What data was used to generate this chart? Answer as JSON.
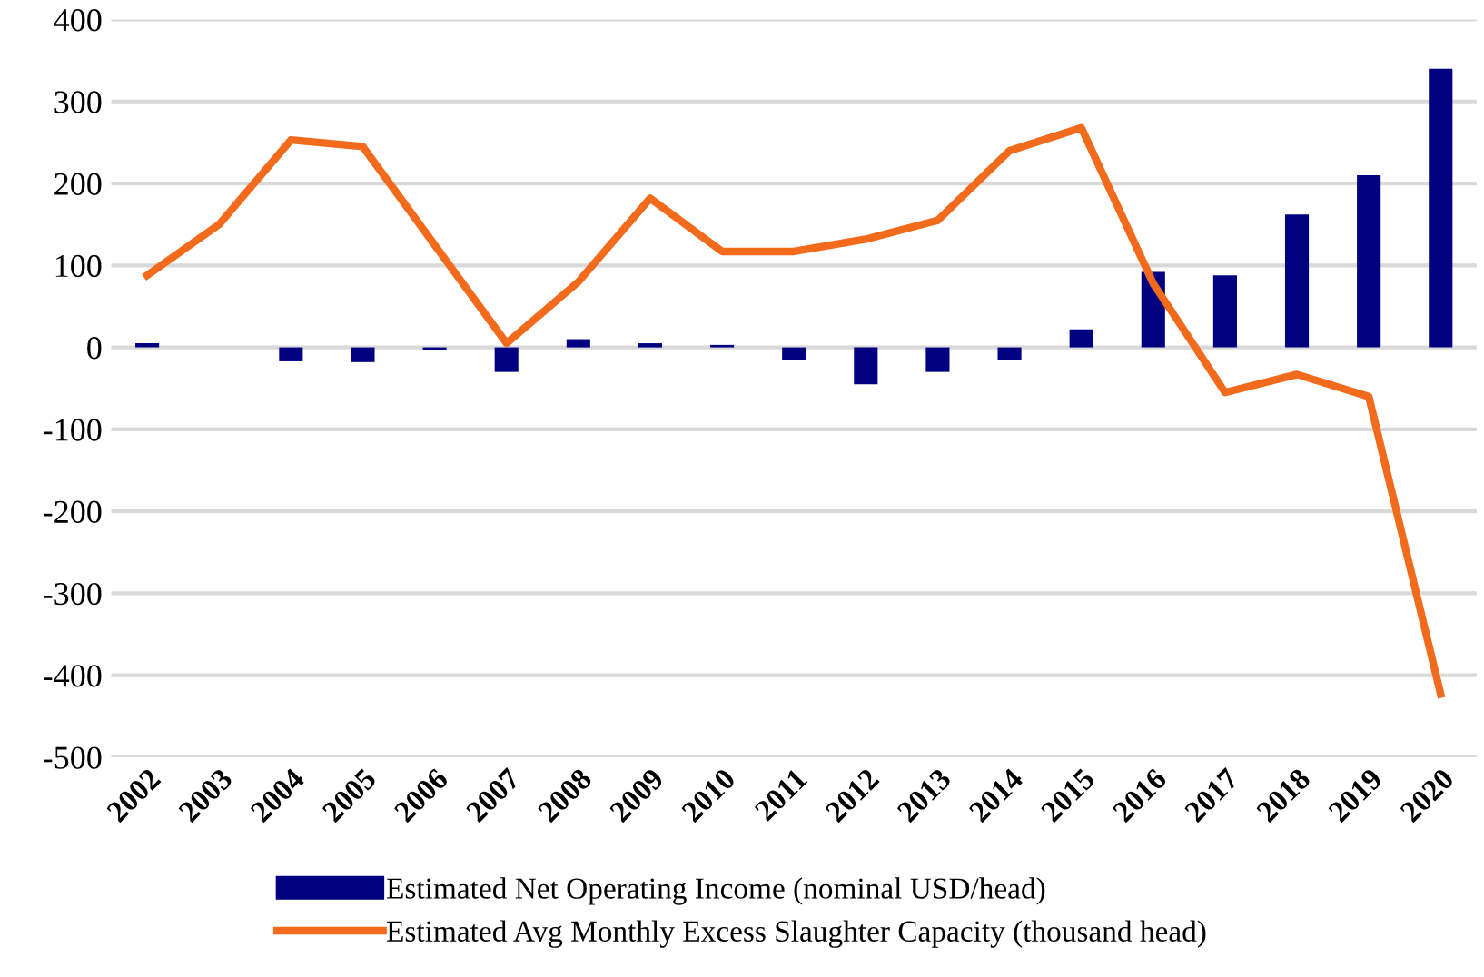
{
  "chart_data": {
    "type": "bar",
    "categories": [
      "2002",
      "2003",
      "2004",
      "2005",
      "2006",
      "2007",
      "2008",
      "2009",
      "2010",
      "2011",
      "2012",
      "2013",
      "2014",
      "2015",
      "2016",
      "2017",
      "2018",
      "2019",
      "2020"
    ],
    "series": [
      {
        "name": "Estimated Net Operating Income (nominal USD/head)",
        "color": "#000080",
        "values": [
          5,
          0,
          -17,
          -18,
          -3,
          -30,
          10,
          5,
          3,
          -15,
          -45,
          -30,
          -15,
          22,
          92,
          88,
          162,
          210,
          340
        ]
      },
      {
        "name": "Estimated Avg Monthly Excess Slaughter Capacity (thousand head)",
        "type": "line",
        "color": "#f26b1d",
        "values": [
          88,
          150,
          253,
          245,
          125,
          5,
          80,
          182,
          117,
          117,
          132,
          155,
          240,
          268,
          78,
          -55,
          -33,
          -60,
          -423
        ]
      }
    ],
    "ylim": [
      -500,
      400
    ],
    "yticks": [
      -500,
      -400,
      -300,
      -200,
      -100,
      0,
      100,
      200,
      300,
      400
    ],
    "grid": "y",
    "legend": "bottom"
  }
}
